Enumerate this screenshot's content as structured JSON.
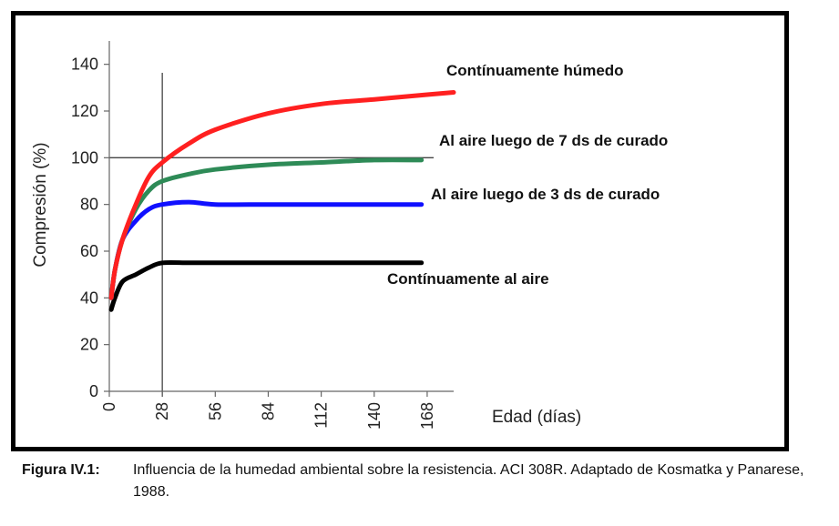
{
  "chart_data": {
    "type": "line",
    "title": "",
    "xlabel": "Edad (días)",
    "ylabel": "Compresión (%)",
    "xlim": [
      0,
      182
    ],
    "ylim": [
      0,
      150
    ],
    "x_ticks": [
      0,
      28,
      56,
      84,
      112,
      140,
      168
    ],
    "y_ticks": [
      0,
      20,
      40,
      60,
      80,
      100,
      120,
      140
    ],
    "grid": false,
    "reference_lines": [
      {
        "axis": "x",
        "value": 28
      },
      {
        "axis": "y",
        "value": 100
      }
    ],
    "series": [
      {
        "name": "Contínuamente húmedo",
        "color": "#ff2020",
        "x": [
          1,
          3,
          7,
          14,
          21,
          28,
          42,
          56,
          84,
          112,
          140,
          168,
          182
        ],
        "y": [
          40,
          52,
          65,
          80,
          92,
          98,
          106,
          112,
          119,
          123,
          125,
          127,
          128
        ]
      },
      {
        "name": "Al aire luego de 7 ds de curado",
        "color": "#2e8b57",
        "x": [
          1,
          3,
          7,
          14,
          21,
          28,
          42,
          56,
          84,
          112,
          140,
          165
        ],
        "y": [
          40,
          52,
          65,
          78,
          86,
          90,
          93,
          95,
          97,
          98,
          99,
          99
        ]
      },
      {
        "name": "Al aire luego de 3 ds de curado",
        "color": "#1010ff",
        "x": [
          1,
          3,
          7,
          14,
          21,
          28,
          42,
          56,
          84,
          112,
          140,
          165
        ],
        "y": [
          40,
          52,
          65,
          73,
          78,
          80,
          81,
          80,
          80,
          80,
          80,
          80
        ]
      },
      {
        "name": "Contínuamente al aire",
        "color": "#000000",
        "x": [
          1,
          3,
          7,
          14,
          21,
          28,
          42,
          56,
          84,
          112,
          140,
          165
        ],
        "y": [
          35,
          40,
          47,
          50,
          53,
          55,
          55,
          55,
          55,
          55,
          55,
          55
        ]
      }
    ]
  },
  "caption": {
    "label": "Figura IV.1:",
    "text": "Influencia de la humedad ambiental sobre la resistencia. ACI 308R. Adaptado de Kosmatka y Panarese, 1988."
  }
}
